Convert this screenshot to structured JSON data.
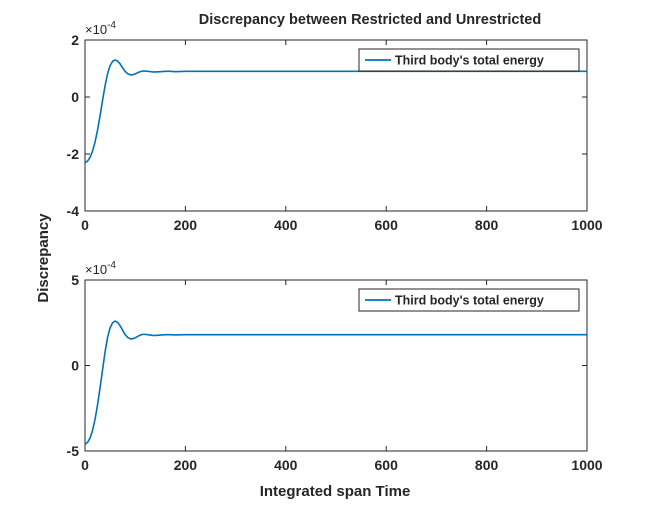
{
  "figure": {
    "title": "Discrepancy between Restricted and Unrestricted",
    "ylabel": "Discrepancy",
    "xlabel": "Integrated span Time"
  },
  "colors": {
    "series": "#0072bd",
    "axes": "#262626",
    "background": "#ffffff"
  },
  "chart_data": [
    {
      "type": "line",
      "title": "Discrepancy between Restricted and Unrestricted",
      "xlabel": "",
      "ylabel": "",
      "xlim": [
        0,
        1000
      ],
      "ylim": [
        -4,
        2
      ],
      "y_multiplier": "×10",
      "y_exponent": "-4",
      "xticks": [
        0,
        200,
        400,
        600,
        800,
        1000
      ],
      "xtick_labels": [
        "0",
        "200",
        "400",
        "600",
        "800",
        "1000"
      ],
      "yticks": [
        -4,
        -2,
        0,
        2
      ],
      "ytick_labels": [
        "-4",
        "-2",
        "0",
        "2"
      ],
      "grid": false,
      "legend_position": "top-right",
      "series": [
        {
          "name": "Third body's total energy",
          "x": [
            0,
            5,
            10,
            15,
            20,
            25,
            30,
            35,
            40,
            45,
            50,
            55,
            60,
            65,
            70,
            75,
            80,
            85,
            90,
            95,
            100,
            105,
            110,
            115,
            120,
            125,
            130,
            135,
            140,
            150,
            160,
            170,
            180,
            200,
            250,
            300,
            400,
            500,
            600,
            700,
            800,
            900,
            1000
          ],
          "y": [
            -2.3,
            -2.25,
            -2.12,
            -1.9,
            -1.58,
            -1.16,
            -0.66,
            -0.12,
            0.4,
            0.82,
            1.1,
            1.25,
            1.3,
            1.26,
            1.16,
            1.02,
            0.9,
            0.82,
            0.78,
            0.78,
            0.81,
            0.85,
            0.89,
            0.91,
            0.91,
            0.9,
            0.89,
            0.88,
            0.88,
            0.89,
            0.9,
            0.9,
            0.89,
            0.9,
            0.9,
            0.9,
            0.9,
            0.9,
            0.9,
            0.9,
            0.9,
            0.9,
            0.9
          ]
        }
      ]
    },
    {
      "type": "line",
      "title": "",
      "xlabel": "Integrated span Time",
      "ylabel": "",
      "xlim": [
        0,
        1000
      ],
      "ylim": [
        -5,
        5
      ],
      "y_multiplier": "×10",
      "y_exponent": "-4",
      "xticks": [
        0,
        200,
        400,
        600,
        800,
        1000
      ],
      "xtick_labels": [
        "0",
        "200",
        "400",
        "600",
        "800",
        "1000"
      ],
      "yticks": [
        -5,
        0,
        5
      ],
      "ytick_labels": [
        "-5",
        "0",
        "5"
      ],
      "grid": false,
      "legend_position": "top-right",
      "series": [
        {
          "name": "Third body's total energy",
          "x": [
            0,
            5,
            10,
            15,
            20,
            25,
            30,
            35,
            40,
            45,
            50,
            55,
            60,
            65,
            70,
            75,
            80,
            85,
            90,
            95,
            100,
            105,
            110,
            115,
            120,
            125,
            130,
            135,
            140,
            150,
            160,
            170,
            180,
            200,
            250,
            300,
            400,
            500,
            600,
            700,
            800,
            900,
            1000
          ],
          "y": [
            -4.6,
            -4.5,
            -4.25,
            -3.8,
            -3.15,
            -2.3,
            -1.3,
            -0.25,
            0.8,
            1.65,
            2.2,
            2.5,
            2.6,
            2.52,
            2.32,
            2.06,
            1.8,
            1.64,
            1.56,
            1.56,
            1.62,
            1.7,
            1.78,
            1.82,
            1.82,
            1.8,
            1.78,
            1.76,
            1.76,
            1.78,
            1.8,
            1.8,
            1.79,
            1.8,
            1.8,
            1.8,
            1.8,
            1.8,
            1.8,
            1.8,
            1.8,
            1.8,
            1.8
          ]
        }
      ]
    }
  ]
}
